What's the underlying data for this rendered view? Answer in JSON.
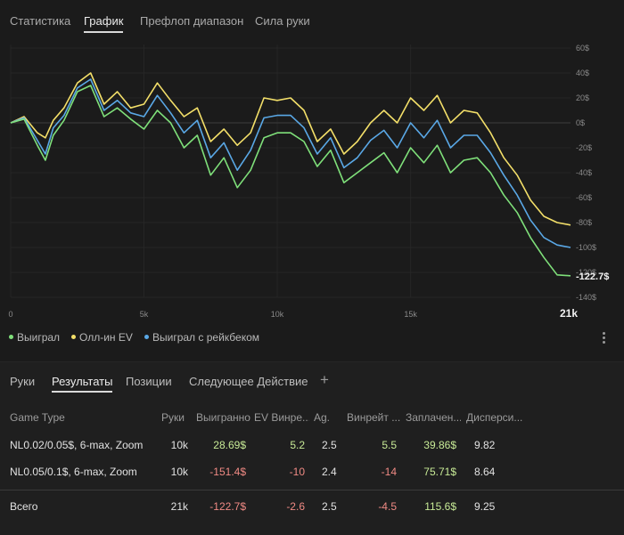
{
  "top_tabs": [
    {
      "label": "Статистика"
    },
    {
      "label": "График"
    },
    {
      "label": "Префлоп диапазон"
    },
    {
      "label": "Сила руки"
    }
  ],
  "colors": {
    "won": "#7fe07a",
    "allin_ev": "#f3df69",
    "won_rakeback": "#5aa8e6",
    "positive": "#c7ea96",
    "negative": "#f08a84"
  },
  "chart_data": {
    "type": "line",
    "x_ticks": [
      "0",
      "5k",
      "10k",
      "15k",
      "21k"
    ],
    "y_ticks": [
      "60$",
      "40$",
      "20$",
      "0$",
      "-20$",
      "-40$",
      "-60$",
      "-80$",
      "-100$",
      "-120$",
      "-140$"
    ],
    "ylim": [
      -140,
      60
    ],
    "xlim": [
      0,
      21
    ],
    "end_label": "-122.7$",
    "series": [
      {
        "name": "Выиграл",
        "x": [
          0,
          0.5,
          1,
          1.3,
          1.6,
          2,
          2.5,
          3,
          3.5,
          4,
          4.5,
          5,
          5.5,
          6,
          6.5,
          7,
          7.5,
          8,
          8.5,
          9,
          9.5,
          10,
          10.5,
          11,
          11.5,
          12,
          12.5,
          13,
          13.5,
          14,
          14.5,
          15,
          15.5,
          16,
          16.5,
          17,
          17.5,
          18,
          18.5,
          19,
          19.5,
          20,
          20.5,
          21
        ],
        "values": [
          0,
          3,
          -18,
          -30,
          -10,
          2,
          25,
          30,
          5,
          12,
          3,
          -5,
          10,
          0,
          -20,
          -10,
          -42,
          -28,
          -52,
          -38,
          -12,
          -8,
          -8,
          -15,
          -35,
          -22,
          -48,
          -40,
          -32,
          -24,
          -40,
          -20,
          -32,
          -18,
          -40,
          -30,
          -28,
          -40,
          -58,
          -72,
          -92,
          -108,
          -122,
          -122.7
        ]
      },
      {
        "name": "Олл-ин EV",
        "x": [
          0,
          0.5,
          1,
          1.3,
          1.6,
          2,
          2.5,
          3,
          3.5,
          4,
          4.5,
          5,
          5.5,
          6,
          6.5,
          7,
          7.5,
          8,
          8.5,
          9,
          9.5,
          10,
          10.5,
          11,
          11.5,
          12,
          12.5,
          13,
          13.5,
          14,
          14.5,
          15,
          15.5,
          16,
          16.5,
          17,
          17.5,
          18,
          18.5,
          19,
          19.5,
          20,
          20.5,
          21
        ],
        "values": [
          0,
          5,
          -8,
          -12,
          2,
          12,
          32,
          40,
          15,
          25,
          12,
          15,
          32,
          18,
          5,
          12,
          -15,
          -5,
          -18,
          -8,
          20,
          18,
          20,
          10,
          -15,
          -5,
          -25,
          -15,
          0,
          10,
          0,
          20,
          10,
          22,
          0,
          10,
          8,
          -8,
          -28,
          -42,
          -62,
          -75,
          -80,
          -82
        ]
      },
      {
        "name": "Выиграл с рейкбеком",
        "x": [
          0,
          0.5,
          1,
          1.3,
          1.6,
          2,
          2.5,
          3,
          3.5,
          4,
          4.5,
          5,
          5.5,
          6,
          6.5,
          7,
          7.5,
          8,
          8.5,
          9,
          9.5,
          10,
          10.5,
          11,
          11.5,
          12,
          12.5,
          13,
          13.5,
          14,
          14.5,
          15,
          15.5,
          16,
          16.5,
          17,
          17.5,
          18,
          18.5,
          19,
          19.5,
          20,
          20.5,
          21
        ],
        "values": [
          0,
          4,
          -14,
          -25,
          -4,
          6,
          28,
          35,
          10,
          18,
          8,
          5,
          22,
          8,
          -8,
          2,
          -28,
          -16,
          -38,
          -22,
          4,
          6,
          6,
          -4,
          -25,
          -12,
          -36,
          -28,
          -14,
          -6,
          -20,
          0,
          -12,
          2,
          -20,
          -10,
          -10,
          -24,
          -42,
          -58,
          -78,
          -92,
          -98,
          -100
        ]
      }
    ]
  },
  "legend": [
    {
      "label": "Выиграл",
      "color": "#7fe07a"
    },
    {
      "label": "Олл-ин EV",
      "color": "#f3df69"
    },
    {
      "label": "Выиграл с рейкбеком",
      "color": "#5aa8e6"
    }
  ],
  "sub_tabs": [
    {
      "label": "Руки"
    },
    {
      "label": "Результаты"
    },
    {
      "label": "Позиции"
    },
    {
      "label": "Следующее Действие"
    }
  ],
  "plus_label": "+",
  "table": {
    "headers": [
      "Game Type",
      "Руки",
      "Выигранно",
      "EV Винре...",
      "Ag.",
      "Винрейт ...",
      "Заплачен...",
      "Дисперси..."
    ],
    "rows": [
      {
        "game": "NL0.02/0.05$, 6-max, Zoom",
        "hands": "10k",
        "won": "28.69$",
        "ev": "5.2",
        "ag": "2.5",
        "winrate": "5.5",
        "paid": "39.86$",
        "variance": "9.82"
      },
      {
        "game": "NL0.05/0.1$, 6-max, Zoom",
        "hands": "10k",
        "won": "-151.4$",
        "ev": "-10",
        "ag": "2.4",
        "winrate": "-14",
        "paid": "75.71$",
        "variance": "8.64"
      }
    ],
    "total": {
      "game": "Всего",
      "hands": "21k",
      "won": "-122.7$",
      "ev": "-2.6",
      "ag": "2.5",
      "winrate": "-4.5",
      "paid": "115.6$",
      "variance": "9.25"
    }
  }
}
